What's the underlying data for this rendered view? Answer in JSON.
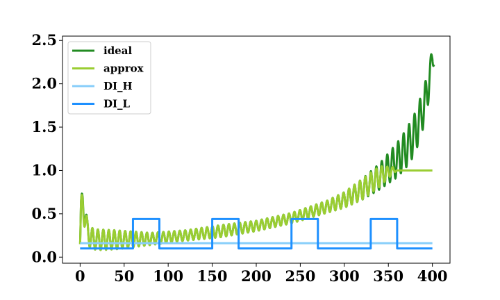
{
  "chart_data": {
    "type": "line",
    "title": "",
    "xlabel": "",
    "ylabel": "",
    "xlim": [
      -20,
      420
    ],
    "ylim": [
      -0.07,
      2.55
    ],
    "x_ticks": [
      0,
      50,
      100,
      150,
      200,
      250,
      300,
      350,
      400
    ],
    "y_ticks": [
      0.0,
      0.5,
      1.0,
      1.5,
      2.0,
      2.5
    ],
    "legend_placement": "top-left",
    "grid": false,
    "series": [
      {
        "name": "ideal",
        "color": "#228b22",
        "description_free_params": true,
        "x": [
          0,
          1,
          3,
          5,
          8,
          12,
          20,
          40,
          80,
          120,
          160,
          200,
          240,
          280,
          300,
          320,
          340,
          360,
          370,
          380,
          390,
          395,
          400,
          402
        ],
        "y": [
          0.15,
          0.5,
          0.66,
          0.55,
          0.3,
          0.22,
          0.2,
          0.2,
          0.21,
          0.25,
          0.3,
          0.36,
          0.45,
          0.58,
          0.66,
          0.78,
          0.93,
          1.12,
          1.25,
          1.42,
          1.72,
          1.95,
          2.3,
          2.22
        ],
        "oscillation_amplitude": [
          0.05,
          0.16,
          0.18,
          0.16,
          0.14,
          0.12,
          0.12,
          0.11,
          0.07,
          0.06,
          0.07,
          0.06,
          0.06,
          0.07,
          0.09,
          0.12,
          0.15,
          0.2,
          0.22,
          0.24,
          0.22,
          0.2,
          0.12,
          0.0
        ],
        "oscillation_period": 6.2
      },
      {
        "name": "approx",
        "color": "#9acd32",
        "x": [
          0,
          1,
          3,
          5,
          8,
          12,
          20,
          40,
          80,
          120,
          160,
          200,
          240,
          280,
          300,
          320,
          340,
          355,
          360,
          400
        ],
        "y": [
          0.15,
          0.5,
          0.63,
          0.5,
          0.3,
          0.22,
          0.2,
          0.2,
          0.21,
          0.25,
          0.3,
          0.36,
          0.45,
          0.58,
          0.66,
          0.78,
          0.93,
          1.0,
          1.0,
          1.0
        ],
        "oscillation_amplitude": [
          0.05,
          0.16,
          0.18,
          0.16,
          0.14,
          0.12,
          0.12,
          0.11,
          0.07,
          0.06,
          0.07,
          0.06,
          0.06,
          0.07,
          0.09,
          0.12,
          0.12,
          0.04,
          0.0,
          0.0
        ],
        "oscillation_period": 6.2
      },
      {
        "name": "DI_H",
        "color": "#87cefa",
        "x": [
          0,
          400
        ],
        "y": [
          0.16,
          0.16
        ]
      },
      {
        "name": "DI_L",
        "color": "#1e90ff",
        "x": [
          0,
          60,
          60,
          90,
          90,
          150,
          150,
          180,
          180,
          240,
          240,
          270,
          270,
          330,
          330,
          360,
          360,
          400
        ],
        "y": [
          0.1,
          0.1,
          0.44,
          0.44,
          0.1,
          0.1,
          0.44,
          0.44,
          0.1,
          0.1,
          0.44,
          0.44,
          0.1,
          0.1,
          0.44,
          0.44,
          0.1,
          0.1
        ]
      }
    ]
  }
}
